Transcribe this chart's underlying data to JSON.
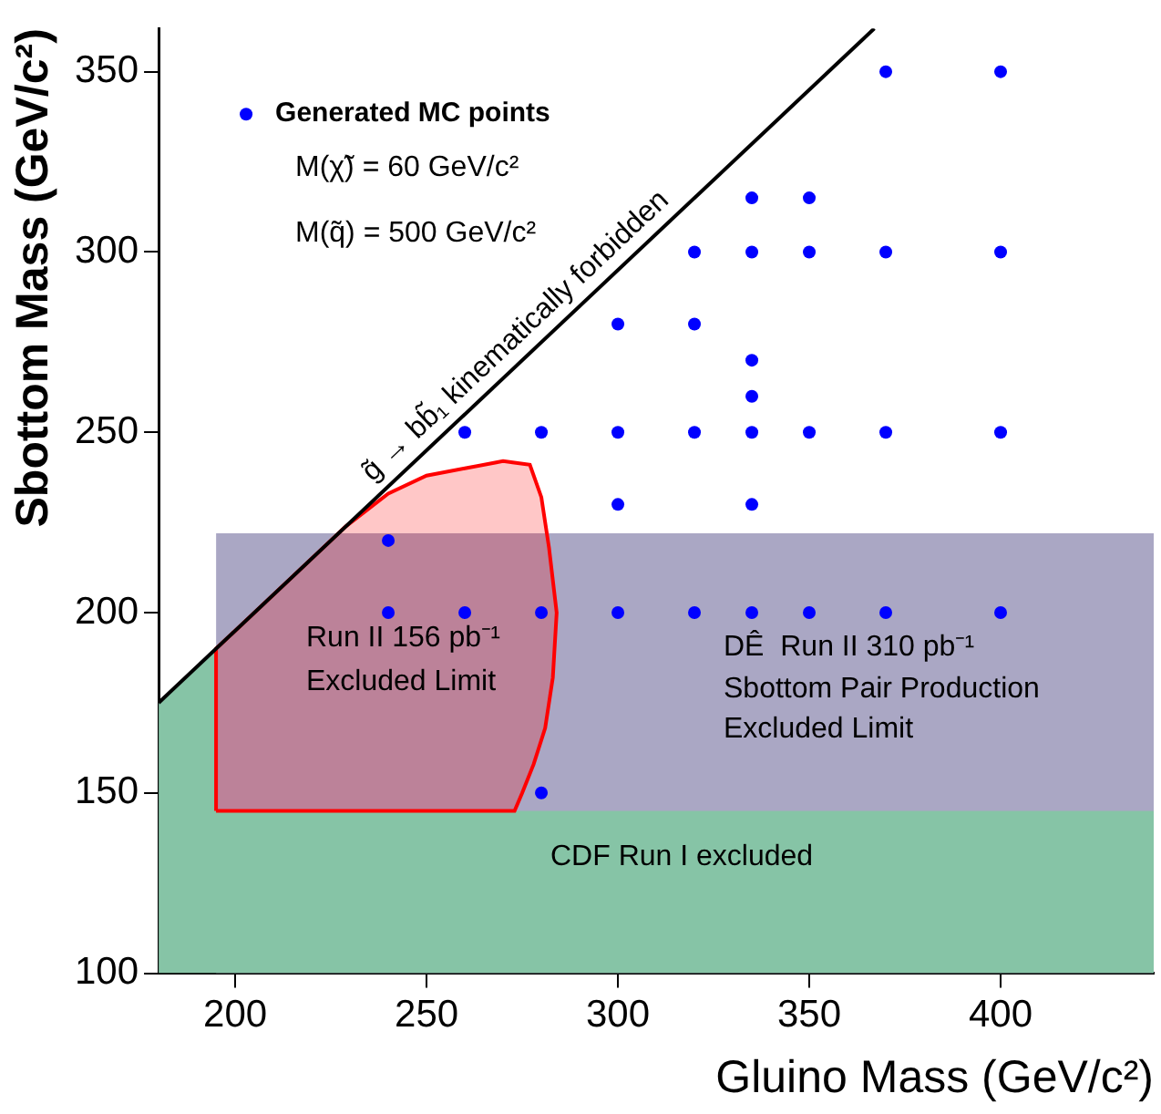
{
  "chart_data": {
    "type": "scatter",
    "xlabel": "Gluino Mass (GeV/c²)",
    "ylabel": "Sbottom Mass (GeV/c²)",
    "xlim": [
      180,
      440
    ],
    "ylim": [
      100,
      362
    ],
    "xticks": [
      200,
      250,
      300,
      350,
      400
    ],
    "yticks": [
      100,
      150,
      200,
      250,
      300,
      350
    ],
    "grid": false,
    "legend": "top left",
    "series": [
      {
        "type": "area",
        "color": "#aaa7c4",
        "x": [
          195,
          440
        ],
        "values": [
          222,
          222
        ]
      },
      {
        "type": "area",
        "color": "#86c4a6",
        "x": [
          180,
          195,
          195,
          440
        ],
        "values": [
          175,
          190,
          145,
          145
        ]
      },
      {
        "type": "area",
        "color": "#ff0000",
        "x": [
          195,
          195,
          229,
          240,
          250,
          260,
          270,
          277,
          280,
          282,
          284,
          283,
          281,
          278,
          275,
          273,
          195
        ],
        "values": [
          145,
          190,
          224,
          233,
          238,
          240,
          242,
          241,
          232,
          218,
          200,
          182,
          168,
          158,
          150,
          145,
          145
        ]
      },
      {
        "type": "line",
        "name": "g̃ → bb̃₁ kinematically forbidden",
        "color": "#000000",
        "x": [
          180,
          367
        ],
        "values": [
          175,
          362
        ]
      },
      {
        "name": "Generated MC points",
        "color": "#0000ff",
        "marker": "circle",
        "x": [
          240,
          240,
          260,
          260,
          280,
          280,
          280,
          300,
          300,
          300,
          300,
          320,
          320,
          320,
          320,
          335,
          335,
          335,
          335,
          335,
          335,
          335,
          350,
          350,
          350,
          350,
          370,
          370,
          370,
          370,
          400,
          400,
          400,
          400
        ],
        "values": [
          220,
          200,
          250,
          200,
          250,
          200,
          150,
          280,
          250,
          230,
          200,
          300,
          280,
          250,
          200,
          315,
          300,
          270,
          260,
          250,
          230,
          200,
          315,
          300,
          250,
          200,
          350,
          300,
          250,
          200,
          350,
          300,
          250,
          200
        ]
      }
    ],
    "annotations": [
      "M(χ̃) = 60 GeV/c²",
      "M(q̃) = 500 GeV/c²",
      "Run II 156 pb⁻¹",
      "Excluded Limit",
      "DÊ  Run II 310 pb⁻¹",
      "Sbottom Pair Production",
      "Excluded Limit",
      "CDF Run I excluded"
    ]
  }
}
